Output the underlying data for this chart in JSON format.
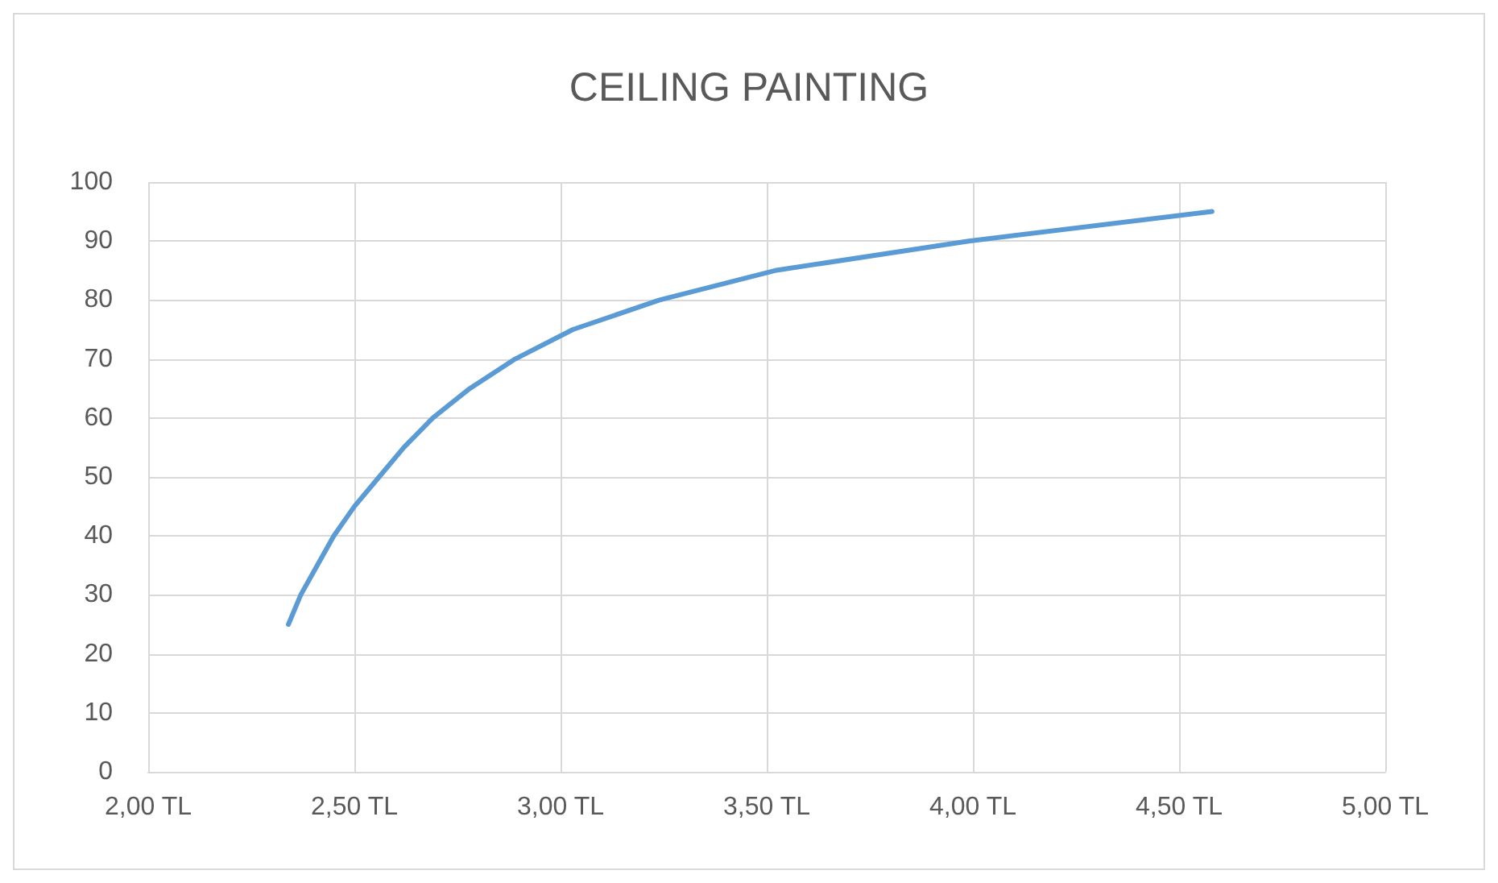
{
  "chart_data": {
    "type": "line",
    "title": "CEILING PAINTING",
    "x": [
      2.34,
      2.37,
      2.41,
      2.45,
      2.5,
      2.56,
      2.62,
      2.69,
      2.78,
      2.89,
      3.03,
      3.24,
      3.52,
      3.99,
      4.58
    ],
    "series": [
      {
        "color": "#5b9bd5",
        "values": [
          25,
          30,
          35,
          40,
          45,
          50,
          55,
          60,
          65,
          70,
          75,
          80,
          85,
          90,
          95
        ]
      }
    ],
    "xlim": [
      2,
      5
    ],
    "xticks": [
      {
        "value": 2,
        "label": "2,00 TL"
      },
      {
        "value": 2.5,
        "label": "2,50 TL"
      },
      {
        "value": 3,
        "label": "3,00 TL"
      },
      {
        "value": 3.5,
        "label": "3,50 TL"
      },
      {
        "value": 4,
        "label": "4,00 TL"
      },
      {
        "value": 4.5,
        "label": "4,50 TL"
      },
      {
        "value": 5,
        "label": "5,00 TL"
      }
    ],
    "ylim": [
      0,
      100
    ],
    "yticks": [
      0,
      10,
      20,
      30,
      40,
      50,
      60,
      70,
      80,
      90,
      100
    ],
    "grid": true,
    "marker": "none",
    "line_style": "solid"
  }
}
